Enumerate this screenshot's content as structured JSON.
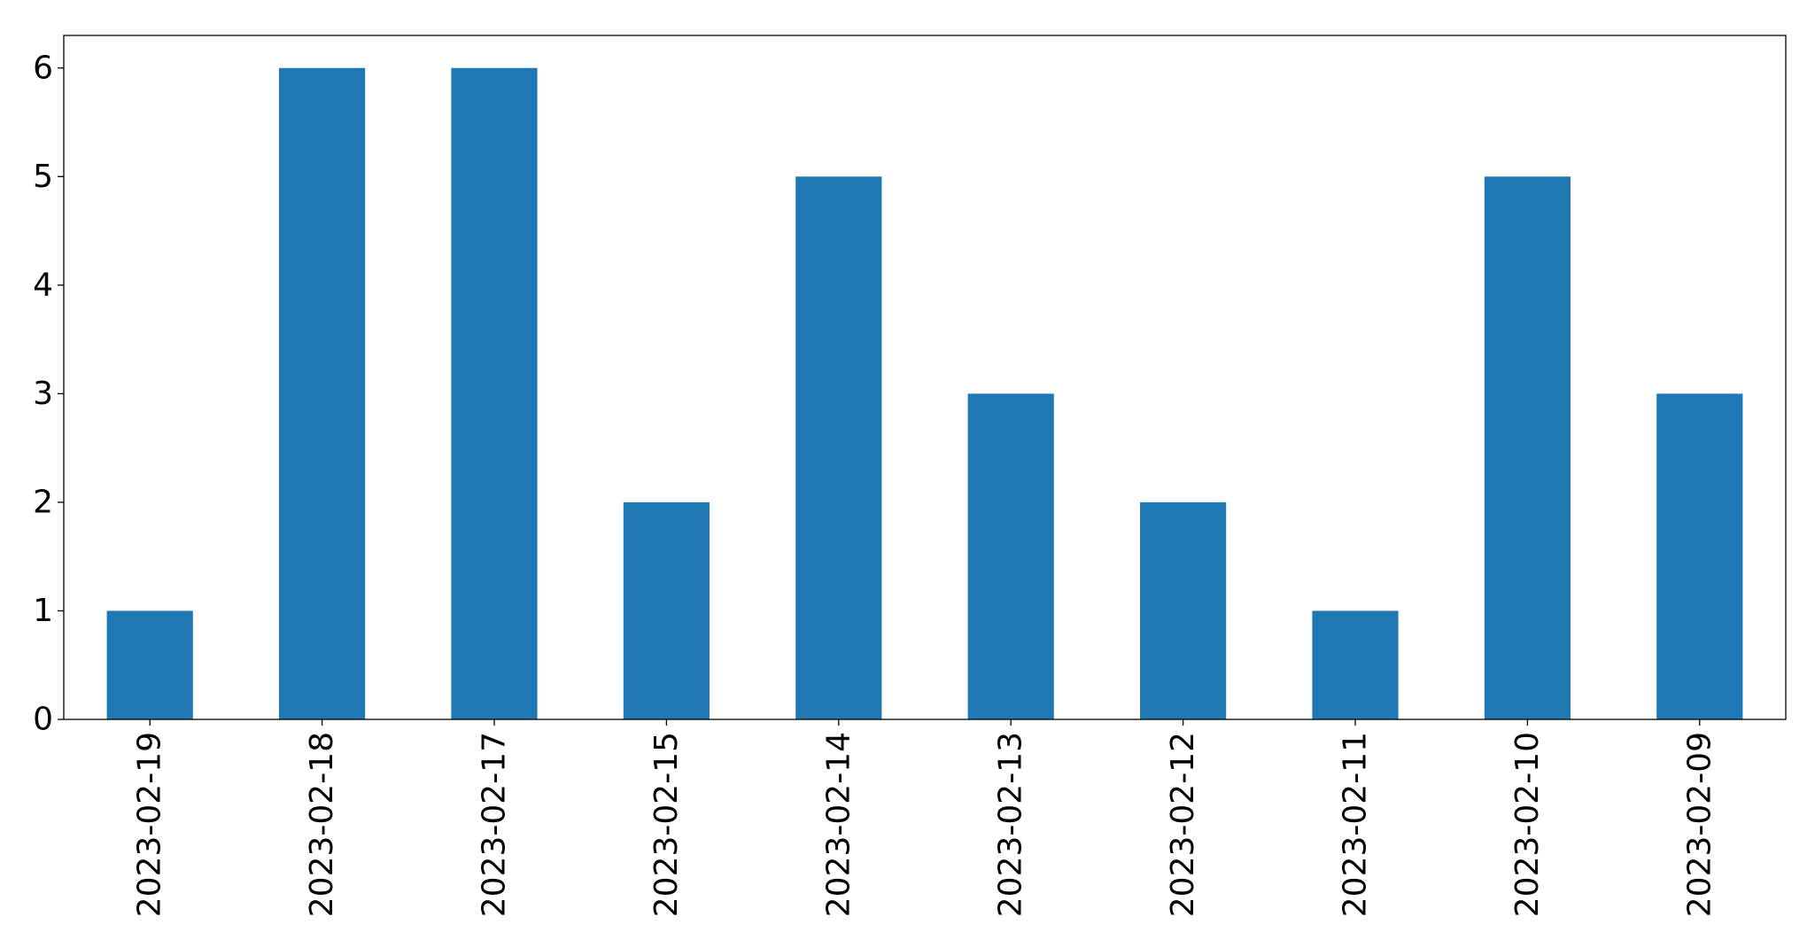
{
  "chart_data": {
    "type": "bar",
    "title": "",
    "xlabel": "",
    "ylabel": "",
    "categories": [
      "2023-02-19",
      "2023-02-18",
      "2023-02-17",
      "2023-02-15",
      "2023-02-14",
      "2023-02-13",
      "2023-02-12",
      "2023-02-11",
      "2023-02-10",
      "2023-02-09"
    ],
    "values": [
      1,
      6,
      6,
      2,
      5,
      3,
      2,
      1,
      5,
      3
    ],
    "ylim": [
      0,
      6.3
    ],
    "yticks": [
      0,
      1,
      2,
      3,
      4,
      5,
      6
    ],
    "grid": false,
    "bar_color": "#1f77b4",
    "axis_color": "#000000"
  }
}
